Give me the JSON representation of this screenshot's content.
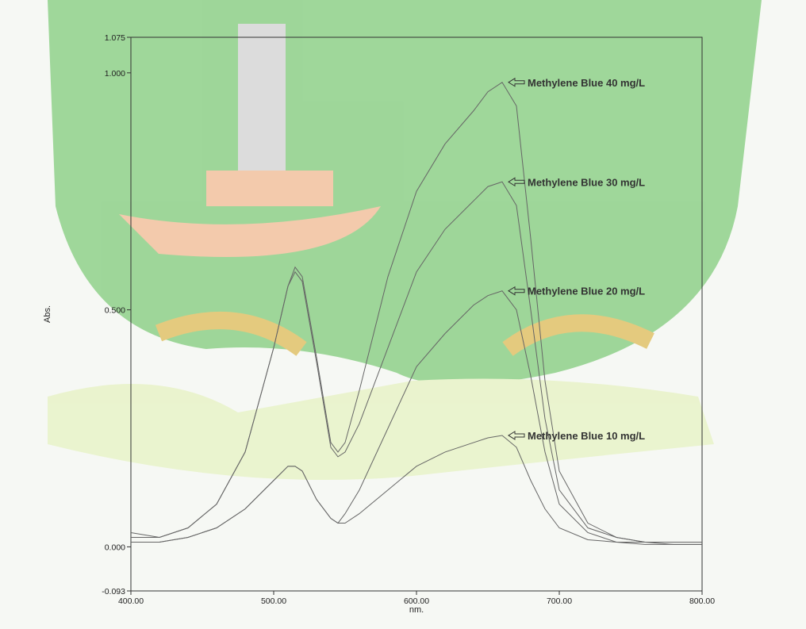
{
  "chart_data": {
    "type": "line",
    "x_label": "nm.",
    "y_label": "Abs.",
    "x": [
      400,
      420,
      440,
      460,
      480,
      500,
      510,
      515,
      520,
      530,
      540,
      545,
      550,
      560,
      580,
      600,
      620,
      640,
      650,
      660,
      670,
      680,
      690,
      700,
      720,
      740,
      760,
      780,
      800
    ],
    "series": [
      {
        "name": "Methylene Blue 40 mg/L",
        "color": "#666666",
        "values": [
          0.03,
          0.02,
          0.04,
          0.09,
          0.2,
          0.42,
          0.55,
          0.59,
          0.57,
          0.4,
          0.22,
          0.2,
          0.22,
          0.33,
          0.57,
          0.75,
          0.85,
          0.92,
          0.96,
          0.98,
          0.93,
          0.65,
          0.35,
          0.16,
          0.05,
          0.02,
          0.01,
          0.01,
          0.01
        ]
      },
      {
        "name": "Methylene Blue 30 mg/L",
        "color": "#666666",
        "values": [
          0.02,
          0.02,
          0.04,
          0.09,
          0.2,
          0.42,
          0.55,
          0.58,
          0.56,
          0.39,
          0.21,
          0.19,
          0.2,
          0.26,
          0.42,
          0.58,
          0.67,
          0.73,
          0.76,
          0.77,
          0.72,
          0.5,
          0.27,
          0.12,
          0.04,
          0.02,
          0.01,
          0.01,
          0.01
        ]
      },
      {
        "name": "Methylene Blue 20 mg/L",
        "color": "#666666",
        "values": [
          0.01,
          0.01,
          0.02,
          0.04,
          0.08,
          0.14,
          0.17,
          0.17,
          0.16,
          0.1,
          0.06,
          0.05,
          0.07,
          0.12,
          0.25,
          0.38,
          0.45,
          0.51,
          0.53,
          0.54,
          0.5,
          0.36,
          0.2,
          0.09,
          0.03,
          0.01,
          0.01,
          0.005,
          0.005
        ]
      },
      {
        "name": "Methylene Blue 10 mg/L",
        "color": "#666666",
        "values": [
          0.01,
          0.01,
          0.02,
          0.04,
          0.08,
          0.14,
          0.17,
          0.17,
          0.16,
          0.1,
          0.06,
          0.05,
          0.05,
          0.07,
          0.12,
          0.17,
          0.2,
          0.22,
          0.23,
          0.235,
          0.21,
          0.14,
          0.08,
          0.04,
          0.015,
          0.01,
          0.005,
          0.005,
          0.005
        ]
      }
    ],
    "xlim": [
      400,
      800
    ],
    "ylim": [
      -0.093,
      1.075
    ],
    "xticks": [
      {
        "value": 400,
        "label": "400.00"
      },
      {
        "value": 500,
        "label": "500.00"
      },
      {
        "value": 600,
        "label": "600.00"
      },
      {
        "value": 700,
        "label": "700.00"
      },
      {
        "value": 800,
        "label": "800.00"
      }
    ],
    "yticks": [
      -0.093,
      {
        "value": 0,
        "label": "0.000"
      },
      {
        "value": 0.5,
        "label": "0.500"
      },
      {
        "value": 1,
        "label": "1.000"
      },
      1.075
    ]
  }
}
